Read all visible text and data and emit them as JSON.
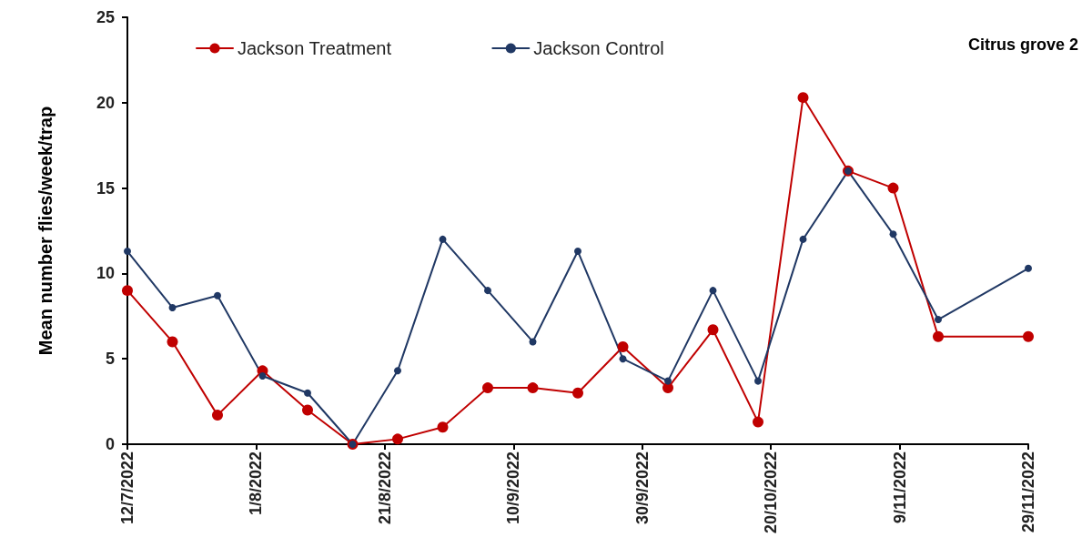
{
  "chart_data": {
    "type": "line",
    "ylabel": "Mean number flies/week/trap",
    "annotations": [
      "Citrus grove 2"
    ],
    "x": [
      "2022-07-12",
      "2022-07-19",
      "2022-07-26",
      "2022-08-02",
      "2022-08-09",
      "2022-08-16",
      "2022-08-23",
      "2022-08-30",
      "2022-09-06",
      "2022-09-13",
      "2022-09-20",
      "2022-09-27",
      "2022-10-04",
      "2022-10-11",
      "2022-10-18",
      "2022-10-25",
      "2022-11-01",
      "2022-11-08",
      "2022-11-15",
      "2022-11-29"
    ],
    "series": [
      {
        "name": "Jackson Treatment",
        "color": "#c00000",
        "values": [
          9,
          6,
          1.7,
          4.3,
          2,
          0,
          0.3,
          1,
          3.3,
          3.3,
          3,
          5.7,
          3.3,
          6.7,
          1.3,
          20.3,
          16,
          15,
          6.3,
          6.3
        ]
      },
      {
        "name": "Jackson Control",
        "color": "#203864",
        "values": [
          11.3,
          8,
          8.7,
          4,
          3,
          0,
          4.3,
          12,
          9,
          6,
          11.3,
          5,
          3.7,
          9,
          3.7,
          12,
          16,
          12.3,
          7.3,
          10.3
        ]
      }
    ],
    "xlim": [
      "2022-07-12",
      "2022-11-29"
    ],
    "xticks": [
      {
        "value": "2022-07-12",
        "label": "12/7/2022"
      },
      {
        "value": "2022-08-01",
        "label": "1/8/2022"
      },
      {
        "value": "2022-08-21",
        "label": "21/8/2022"
      },
      {
        "value": "2022-09-10",
        "label": "10/9/2022"
      },
      {
        "value": "2022-09-30",
        "label": "30/9/2022"
      },
      {
        "value": "2022-10-20",
        "label": "20/10/2022"
      },
      {
        "value": "2022-11-09",
        "label": "9/11/2022"
      },
      {
        "value": "2022-11-29",
        "label": "29/11/2022"
      }
    ],
    "ylim": [
      0,
      25
    ],
    "yticks": [
      0,
      5,
      10,
      15,
      20,
      25
    ],
    "grid": false,
    "legend": "top left",
    "marker": "circle",
    "line_style": "solid"
  }
}
